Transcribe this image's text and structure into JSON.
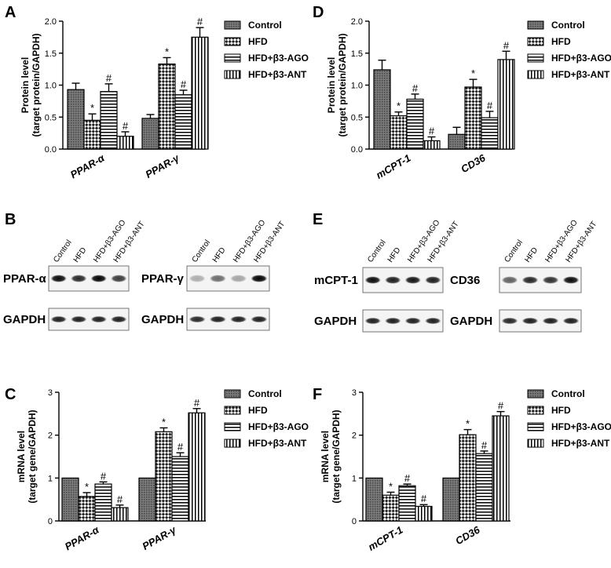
{
  "legend": [
    "Control",
    "HFD",
    "HFD+β3-AGO",
    "HFD+β3-ANT"
  ],
  "chart_data": [
    {
      "panel": "A",
      "type": "bar",
      "ylabel": [
        "Protein level",
        "(target protein/GAPDH)"
      ],
      "ylim": [
        0,
        2.0
      ],
      "yticks": [
        "0.0",
        "0.5",
        "1.0",
        "1.5",
        "2.0"
      ],
      "categories": [
        "PPAR-α",
        "PPAR-γ"
      ],
      "series": [
        {
          "name": "Control",
          "values": [
            0.93,
            0.48
          ],
          "errors": [
            0.1,
            0.06
          ],
          "marks": [
            "",
            ""
          ]
        },
        {
          "name": "HFD",
          "values": [
            0.45,
            1.33
          ],
          "errors": [
            0.1,
            0.1
          ],
          "marks": [
            "*",
            "*"
          ]
        },
        {
          "name": "HFD+β3-AGO",
          "values": [
            0.9,
            0.85
          ],
          "errors": [
            0.12,
            0.07
          ],
          "marks": [
            "#",
            "#"
          ]
        },
        {
          "name": "HFD+β3-ANT",
          "values": [
            0.2,
            1.75
          ],
          "errors": [
            0.07,
            0.15
          ],
          "marks": [
            "#",
            "#"
          ]
        }
      ]
    },
    {
      "panel": "D",
      "type": "bar",
      "ylabel": [
        "Protein level",
        "(target protein/GAPDH)"
      ],
      "ylim": [
        0,
        2.0
      ],
      "yticks": [
        "0.0",
        "0.5",
        "1.0",
        "1.5",
        "2.0"
      ],
      "categories": [
        "mCPT-1",
        "CD36"
      ],
      "series": [
        {
          "name": "Control",
          "values": [
            1.24,
            0.23
          ],
          "errors": [
            0.15,
            0.11
          ],
          "marks": [
            "",
            ""
          ]
        },
        {
          "name": "HFD",
          "values": [
            0.52,
            0.97
          ],
          "errors": [
            0.06,
            0.12
          ],
          "marks": [
            "*",
            "*"
          ]
        },
        {
          "name": "HFD+β3-AGO",
          "values": [
            0.78,
            0.49
          ],
          "errors": [
            0.08,
            0.1
          ],
          "marks": [
            "#",
            "#"
          ]
        },
        {
          "name": "HFD+β3-ANT",
          "values": [
            0.13,
            1.4
          ],
          "errors": [
            0.06,
            0.13
          ],
          "marks": [
            "#",
            "#"
          ]
        }
      ]
    },
    {
      "panel": "C",
      "type": "bar",
      "ylabel": [
        "mRNA level",
        "(target gene/GAPDH)"
      ],
      "ylim": [
        0,
        3
      ],
      "yticks": [
        "0",
        "1",
        "2",
        "3"
      ],
      "categories": [
        "PPAR-α",
        "PPAR-γ"
      ],
      "series": [
        {
          "name": "Control",
          "values": [
            1.0,
            1.0
          ],
          "errors": [
            0,
            0
          ],
          "marks": [
            "",
            ""
          ]
        },
        {
          "name": "HFD",
          "values": [
            0.57,
            2.08
          ],
          "errors": [
            0.09,
            0.09
          ],
          "marks": [
            "*",
            "*"
          ]
        },
        {
          "name": "HFD+β3-AGO",
          "values": [
            0.86,
            1.5
          ],
          "errors": [
            0.05,
            0.09
          ],
          "marks": [
            "#",
            "#"
          ]
        },
        {
          "name": "HFD+β3-ANT",
          "values": [
            0.31,
            2.52
          ],
          "errors": [
            0.06,
            0.1
          ],
          "marks": [
            "#",
            "#"
          ]
        }
      ]
    },
    {
      "panel": "F",
      "type": "bar",
      "ylabel": [
        "mRNA level",
        "(target gene/GAPDH)"
      ],
      "ylim": [
        0,
        3
      ],
      "yticks": [
        "0",
        "1",
        "2",
        "3"
      ],
      "categories": [
        "mCPT-1",
        "CD36"
      ],
      "series": [
        {
          "name": "Control",
          "values": [
            1.0,
            1.0
          ],
          "errors": [
            0,
            0
          ],
          "marks": [
            "",
            ""
          ]
        },
        {
          "name": "HFD",
          "values": [
            0.6,
            2.01
          ],
          "errors": [
            0.07,
            0.12
          ],
          "marks": [
            "*",
            "*"
          ]
        },
        {
          "name": "HFD+β3-AGO",
          "values": [
            0.82,
            1.57
          ],
          "errors": [
            0.04,
            0.06
          ],
          "marks": [
            "#",
            "#"
          ]
        },
        {
          "name": "HFD+β3-ANT",
          "values": [
            0.34,
            2.45
          ],
          "errors": [
            0.04,
            0.1
          ],
          "marks": [
            "#",
            "#"
          ]
        }
      ]
    }
  ],
  "blots": {
    "B": {
      "lanes": [
        "Control",
        "HFD",
        "HFD+β3-AGO",
        "HFD+β3-ANT"
      ],
      "left": {
        "target": "PPAR-α",
        "control": "GAPDH",
        "target_levels": [
          0.9,
          0.75,
          0.95,
          0.65
        ]
      },
      "right": {
        "target": "PPAR-γ",
        "control": "GAPDH",
        "target_levels": [
          0.05,
          0.4,
          0.1,
          1.0
        ]
      }
    },
    "E": {
      "lanes": [
        "Control",
        "HFD",
        "HFD+β3-AGO",
        "HFD+β3-ANT"
      ],
      "left": {
        "target": "mCPT-1",
        "control": "GAPDH",
        "target_levels": [
          0.9,
          0.8,
          0.85,
          0.8
        ]
      },
      "right": {
        "target": "CD36",
        "control": "GAPDH",
        "target_levels": [
          0.45,
          0.75,
          0.7,
          0.9
        ]
      }
    }
  }
}
